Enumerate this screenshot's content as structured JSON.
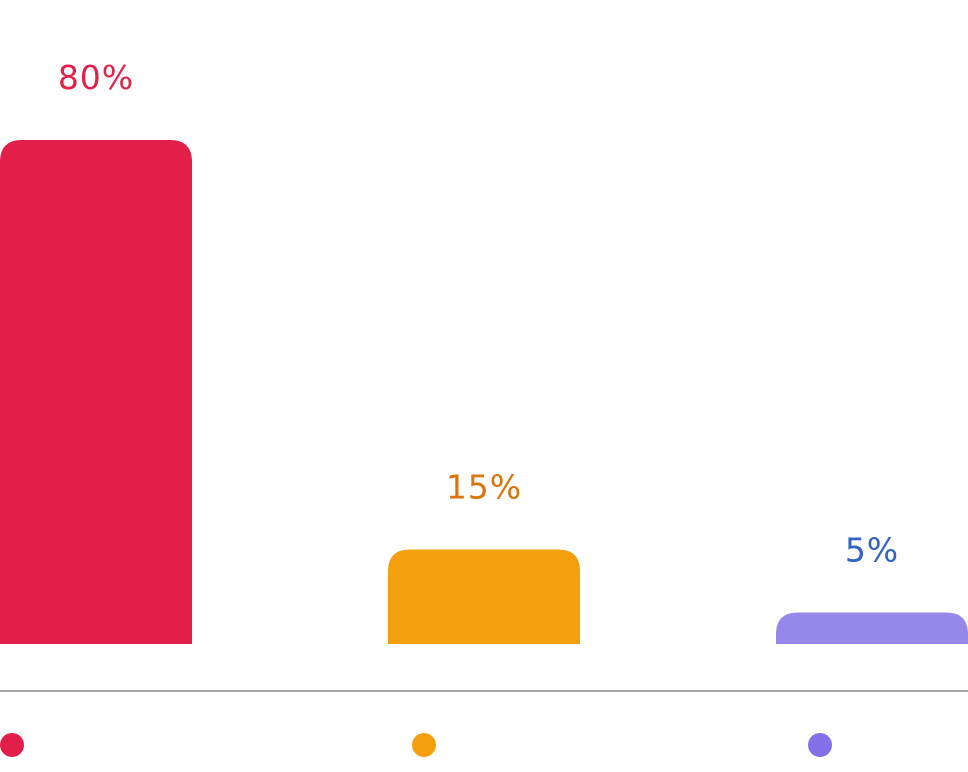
{
  "chart_data": {
    "type": "bar",
    "categories": [
      "",
      "",
      ""
    ],
    "values": [
      80,
      15,
      5
    ],
    "data_labels": [
      "80%",
      "15%",
      "5%"
    ],
    "bar_colors": [
      "#e21f48",
      "#f3a00f",
      "#9688ea"
    ],
    "label_colors": [
      "#e0214a",
      "#d9750a",
      "#2f63c4"
    ],
    "legend_colors": [
      "#e21f4b",
      "#f39f0e",
      "#8471ea"
    ],
    "legend_position": "bottom",
    "axis_color": "#a8a8a8",
    "grid": false,
    "ylim": [
      0,
      80
    ]
  }
}
